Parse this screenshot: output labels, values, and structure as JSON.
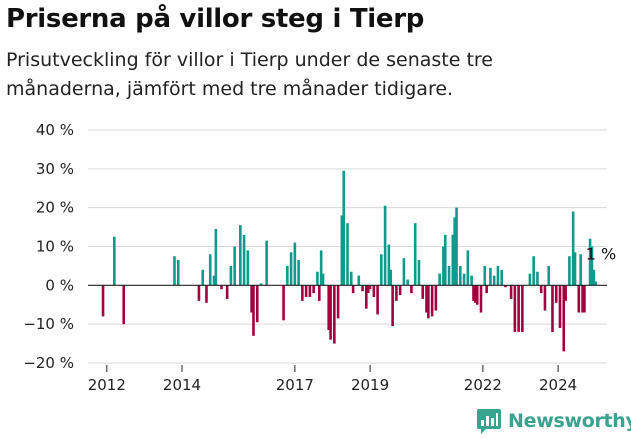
{
  "header": {
    "title": "Priserna på villor steg i Tierp",
    "subtitle": "Prisutveckling för villor i Tierp under de senaste tre månaderna, jämfört med tre månader tidigare."
  },
  "brand": {
    "name": "Newsworthy"
  },
  "colors": {
    "positive": "#0f9a8c",
    "negative": "#a3003f",
    "brand": "#3aa38f"
  },
  "chart_data": {
    "type": "bar",
    "title": "Priserna på villor steg i Tierp",
    "subtitle": "Prisutveckling för villor i Tierp under de senaste tre månaderna, jämfört med tre månader tidigare.",
    "xlabel": "",
    "ylabel": "",
    "ylim": [
      -20,
      40
    ],
    "y_ticks": [
      {
        "value": 40,
        "label": "40 %"
      },
      {
        "value": 30,
        "label": "30 %"
      },
      {
        "value": 20,
        "label": "20 %"
      },
      {
        "value": 10,
        "label": "10 %"
      },
      {
        "value": 0,
        "label": "0 %"
      },
      {
        "value": -10,
        "label": "−10 %"
      },
      {
        "value": -20,
        "label": "−20 %"
      }
    ],
    "x_range": [
      2011.5,
      2025.3
    ],
    "x_ticks": [
      {
        "value": 2012,
        "label": "2012"
      },
      {
        "value": 2014,
        "label": "2014"
      },
      {
        "value": 2017,
        "label": "2017"
      },
      {
        "value": 2019,
        "label": "2019"
      },
      {
        "value": 2022,
        "label": "2022"
      },
      {
        "value": 2024,
        "label": "2024"
      }
    ],
    "grid": true,
    "series": [
      {
        "name": "Prisutveckling (%)",
        "points": [
          [
            2011.9,
            -8
          ],
          [
            2012.2,
            12.5
          ],
          [
            2012.45,
            -10
          ],
          [
            2013.8,
            7.5
          ],
          [
            2013.9,
            6.5
          ],
          [
            2014.45,
            -4
          ],
          [
            2014.55,
            4
          ],
          [
            2014.65,
            -4.5
          ],
          [
            2014.75,
            8
          ],
          [
            2014.85,
            2.5
          ],
          [
            2014.9,
            14.5
          ],
          [
            2015.05,
            -1
          ],
          [
            2015.2,
            -3.5
          ],
          [
            2015.3,
            5
          ],
          [
            2015.4,
            10
          ],
          [
            2015.55,
            15.5
          ],
          [
            2015.65,
            13
          ],
          [
            2015.75,
            9
          ],
          [
            2015.85,
            -7
          ],
          [
            2015.9,
            -13
          ],
          [
            2016.0,
            -9.5
          ],
          [
            2016.1,
            0.5
          ],
          [
            2016.25,
            11.5
          ],
          [
            2016.7,
            -9
          ],
          [
            2016.8,
            5
          ],
          [
            2016.9,
            8.5
          ],
          [
            2017.0,
            11
          ],
          [
            2017.1,
            6.5
          ],
          [
            2017.2,
            -4
          ],
          [
            2017.3,
            -3
          ],
          [
            2017.4,
            -3
          ],
          [
            2017.5,
            -2
          ],
          [
            2017.6,
            3.5
          ],
          [
            2017.65,
            -4
          ],
          [
            2017.7,
            9
          ],
          [
            2017.75,
            3
          ],
          [
            2017.9,
            -11.5
          ],
          [
            2017.95,
            -14
          ],
          [
            2018.05,
            -15
          ],
          [
            2018.15,
            -8.5
          ],
          [
            2018.25,
            18
          ],
          [
            2018.3,
            29.5
          ],
          [
            2018.4,
            16
          ],
          [
            2018.5,
            3.5
          ],
          [
            2018.55,
            -2
          ],
          [
            2018.7,
            2.5
          ],
          [
            2018.8,
            -1.5
          ],
          [
            2018.9,
            -6
          ],
          [
            2018.95,
            -2
          ],
          [
            2019.0,
            -1
          ],
          [
            2019.1,
            -3
          ],
          [
            2019.2,
            -7.5
          ],
          [
            2019.3,
            8
          ],
          [
            2019.4,
            20.5
          ],
          [
            2019.5,
            10.5
          ],
          [
            2019.55,
            4
          ],
          [
            2019.6,
            -10.5
          ],
          [
            2019.7,
            -4
          ],
          [
            2019.8,
            -2.5
          ],
          [
            2019.9,
            7
          ],
          [
            2020.0,
            1.5
          ],
          [
            2020.1,
            -2
          ],
          [
            2020.2,
            16
          ],
          [
            2020.3,
            6.5
          ],
          [
            2020.4,
            -3.5
          ],
          [
            2020.5,
            -7
          ],
          [
            2020.55,
            -8.5
          ],
          [
            2020.65,
            -8
          ],
          [
            2020.75,
            -6.5
          ],
          [
            2020.85,
            3
          ],
          [
            2020.95,
            10
          ],
          [
            2021.0,
            13
          ],
          [
            2021.1,
            5
          ],
          [
            2021.2,
            13
          ],
          [
            2021.25,
            17.5
          ],
          [
            2021.3,
            20
          ],
          [
            2021.4,
            5
          ],
          [
            2021.5,
            3
          ],
          [
            2021.6,
            9
          ],
          [
            2021.7,
            2.5
          ],
          [
            2021.75,
            -4
          ],
          [
            2021.8,
            -4.5
          ],
          [
            2021.85,
            -5
          ],
          [
            2021.95,
            -7
          ],
          [
            2022.05,
            5
          ],
          [
            2022.1,
            -2
          ],
          [
            2022.2,
            4.5
          ],
          [
            2022.3,
            2.5
          ],
          [
            2022.4,
            5
          ],
          [
            2022.5,
            4
          ],
          [
            2022.6,
            -0.5
          ],
          [
            2022.75,
            -3.5
          ],
          [
            2022.85,
            -12
          ],
          [
            2022.95,
            -12
          ],
          [
            2023.05,
            -12
          ],
          [
            2023.25,
            3
          ],
          [
            2023.35,
            7.5
          ],
          [
            2023.45,
            3.5
          ],
          [
            2023.55,
            -2
          ],
          [
            2023.65,
            -6.5
          ],
          [
            2023.75,
            5
          ],
          [
            2023.85,
            -12
          ],
          [
            2023.95,
            -4.5
          ],
          [
            2024.05,
            -11
          ],
          [
            2024.15,
            -17
          ],
          [
            2024.2,
            -4
          ],
          [
            2024.3,
            7.5
          ],
          [
            2024.4,
            19
          ],
          [
            2024.45,
            8.5
          ],
          [
            2024.55,
            -7
          ],
          [
            2024.6,
            8
          ],
          [
            2024.65,
            -7
          ],
          [
            2024.7,
            -7
          ],
          [
            2024.85,
            12
          ],
          [
            2024.9,
            10
          ],
          [
            2024.95,
            4
          ],
          [
            2025.0,
            1
          ]
        ]
      }
    ],
    "annotations": [
      {
        "x": 2025.0,
        "y": 1,
        "text": "1 %"
      }
    ]
  }
}
